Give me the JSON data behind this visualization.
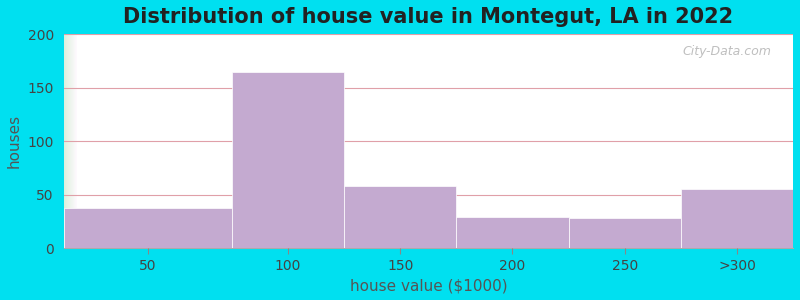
{
  "title": "Distribution of house value in Montegut, LA in 2022",
  "xlabel": "house value ($1000)",
  "ylabel": "houses",
  "categories": [
    "50",
    "100",
    "150",
    "200",
    "250",
    ">300"
  ],
  "bin_edges": [
    0,
    75,
    125,
    175,
    225,
    275,
    325
  ],
  "values": [
    37,
    165,
    58,
    29,
    28,
    55
  ],
  "bar_color": "#c4aad0",
  "bar_edgecolor": "#ffffff",
  "ylim": [
    0,
    200
  ],
  "yticks": [
    0,
    50,
    100,
    150,
    200
  ],
  "xtick_positions": [
    37.5,
    100,
    150,
    200,
    250,
    300
  ],
  "xtick_labels": [
    "50",
    "100",
    "150",
    "200",
    "250",
    ">300"
  ],
  "background_outer": "#00e0f0",
  "grid_color": "#e0a0a8",
  "title_fontsize": 15,
  "axis_label_fontsize": 11,
  "tick_fontsize": 10,
  "watermark_text": "City-Data.com"
}
